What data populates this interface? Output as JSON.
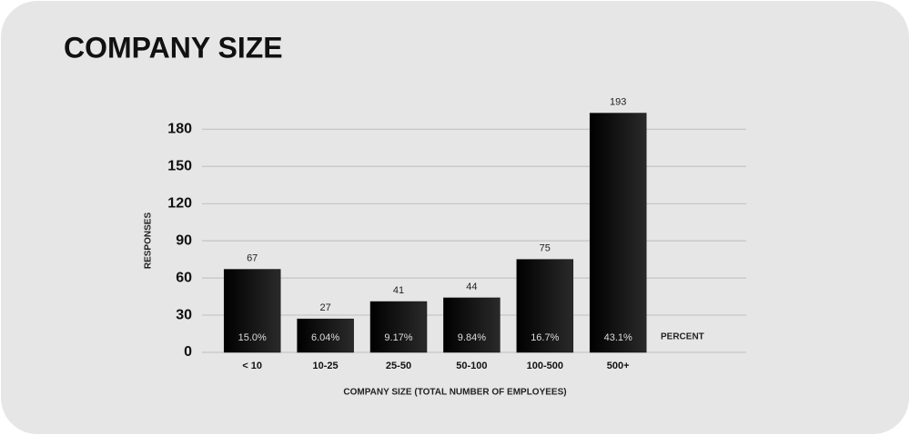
{
  "chart_data": {
    "type": "bar",
    "title": "COMPANY SIZE",
    "ylabel": "RESPONSES",
    "xlabel": "COMPANY SIZE (TOTAL NUMBER OF EMPLOYEES)",
    "categories": [
      "< 10",
      "10-25",
      "25-50",
      "50-100",
      "100-500",
      "500+"
    ],
    "values": [
      67,
      27,
      41,
      44,
      75,
      193
    ],
    "percent_title": "PERCENT",
    "percent_labels": [
      "15.0%",
      "6.04%",
      "9.17%",
      "9.84%",
      "16.7%",
      "43.1%"
    ],
    "color": "#111111",
    "ylim": [
      0,
      200
    ],
    "yticks": [
      0,
      30,
      60,
      90,
      120,
      150,
      180
    ],
    "grid": true
  }
}
